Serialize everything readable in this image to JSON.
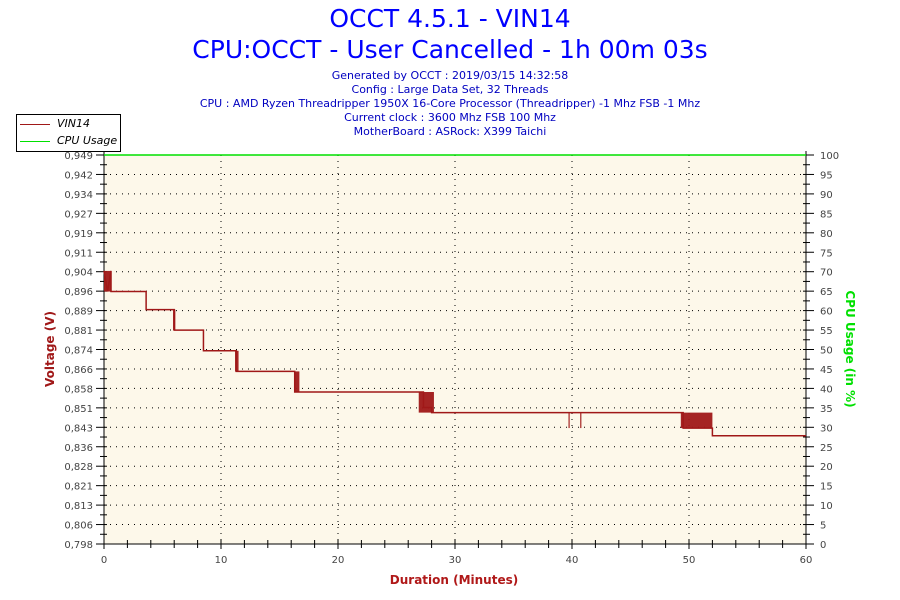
{
  "header": {
    "title": "OCCT 4.5.1 - VIN14",
    "subtitle": "CPU:OCCT - User Cancelled - 1h 00m 03s",
    "info_lines": [
      "Generated by OCCT : 2019/03/15 14:32:58",
      "Config : Large Data Set, 32 Threads",
      "CPU : AMD Ryzen Threadripper 1950X 16-Core Processor (Threadripper) -1 Mhz FSB -1 Mhz",
      "Current clock : 3600 Mhz FSB 100 Mhz",
      "MotherBoard : ASRock: X399 Taichi"
    ]
  },
  "legend": {
    "items": [
      {
        "label": "VIN14",
        "color": "#a01818"
      },
      {
        "label": "CPU Usage",
        "color": "#00e000"
      }
    ]
  },
  "colors": {
    "title": "#0000ff",
    "info": "#0000c0",
    "plot_bg": "#fdf8ea",
    "voltage": "#a01818",
    "cpu": "#00e000",
    "axis_title_left": "#a01818",
    "axis_title_right": "#00e000",
    "axis_title_x": "#b01818"
  },
  "chart_data": {
    "type": "line",
    "title": "OCCT 4.5.1 - VIN14",
    "subtitle": "CPU:OCCT - User Cancelled - 1h 00m 03s",
    "xlabel": "Duration (Minutes)",
    "ylabel": "Voltage (V)",
    "y2label": "CPU Usage (in %)",
    "xlim": [
      0,
      60
    ],
    "ylim": [
      0.798,
      0.949
    ],
    "y2lim": [
      0,
      100
    ],
    "x_ticks": [
      "0",
      "10",
      "20",
      "30",
      "40",
      "50",
      "60"
    ],
    "y_ticks": [
      "0,798",
      "0,806",
      "0,813",
      "0,821",
      "0,828",
      "0,836",
      "0,843",
      "0,851",
      "0,858",
      "0,866",
      "0,874",
      "0,881",
      "0,889",
      "0,896",
      "0,904",
      "0,911",
      "0,919",
      "0,927",
      "0,934",
      "0,942",
      "0,949"
    ],
    "y2_ticks": [
      "0",
      "5",
      "10",
      "15",
      "20",
      "25",
      "30",
      "35",
      "40",
      "45",
      "50",
      "55",
      "60",
      "65",
      "70",
      "75",
      "80",
      "85",
      "90",
      "95",
      "100"
    ],
    "grid": true,
    "legend_position": "top-left",
    "series": [
      {
        "name": "VIN14",
        "axis": "left",
        "x": [
          0,
          0.3,
          0.6,
          0.6,
          3.6,
          3.6,
          6.0,
          6.0,
          8.5,
          8.5,
          11.3,
          11.3,
          16.3,
          16.3,
          27.3,
          27.3,
          28.0,
          28.0,
          49.5,
          49.5,
          52.0,
          52.0,
          60.0
        ],
        "values": [
          0.904,
          0.896,
          0.904,
          0.896,
          0.896,
          0.889,
          0.889,
          0.881,
          0.881,
          0.873,
          0.873,
          0.865,
          0.865,
          0.857,
          0.857,
          0.851,
          0.851,
          0.849,
          0.849,
          0.843,
          0.843,
          0.84,
          0.84
        ],
        "noise_regions": [
          {
            "x_start": 0.0,
            "x_end": 0.6,
            "low": 0.896,
            "high": 0.904
          },
          {
            "x_start": 5.9,
            "x_end": 6.1,
            "low": 0.881,
            "high": 0.889
          },
          {
            "x_start": 11.2,
            "x_end": 11.5,
            "low": 0.865,
            "high": 0.873
          },
          {
            "x_start": 16.3,
            "x_end": 16.7,
            "low": 0.857,
            "high": 0.865
          },
          {
            "x_start": 26.9,
            "x_end": 28.2,
            "low": 0.849,
            "high": 0.857
          },
          {
            "x_start": 39.7,
            "x_end": 39.8,
            "low": 0.843,
            "high": 0.849
          },
          {
            "x_start": 40.7,
            "x_end": 40.75,
            "low": 0.843,
            "high": 0.849
          },
          {
            "x_start": 49.3,
            "x_end": 52.0,
            "low": 0.843,
            "high": 0.849
          }
        ]
      },
      {
        "name": "CPU Usage",
        "axis": "right",
        "x": [
          0,
          60
        ],
        "values": [
          100,
          100
        ]
      }
    ]
  }
}
